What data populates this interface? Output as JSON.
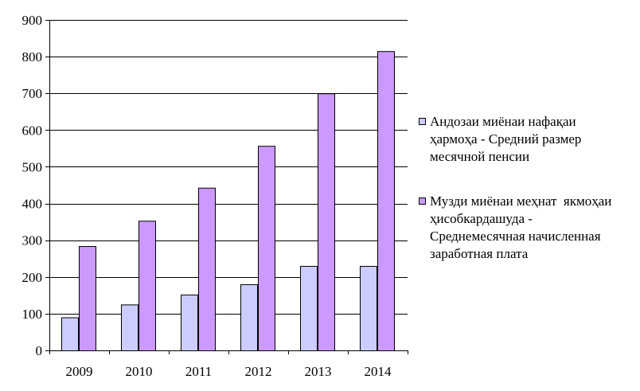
{
  "chart_data": {
    "type": "bar",
    "categories": [
      "2009",
      "2010",
      "2011",
      "2012",
      "2013",
      "2014"
    ],
    "series": [
      {
        "name_lines": [
          "Андозаи миёнаи нафақаи",
          "ҳармоҳа - Средний размер",
          "месячной пенсии"
        ],
        "color": "#ccccff",
        "values": [
          90,
          125,
          152,
          180,
          230,
          230
        ]
      },
      {
        "name_lines": [
          "Музди миёнаи меҳнат  якмоҳаи",
          "ҳисобкардашуда -",
          "Среднемесячная начисленная",
          "заработная плата"
        ],
        "color": "#cc99ff",
        "values": [
          284,
          353,
          443,
          557,
          700,
          815
        ]
      }
    ],
    "y_ticks": [
      0,
      100,
      200,
      300,
      400,
      500,
      600,
      700,
      800,
      900
    ],
    "ylim": [
      0,
      900
    ],
    "grid": "horizontal",
    "legend_position": "right"
  }
}
